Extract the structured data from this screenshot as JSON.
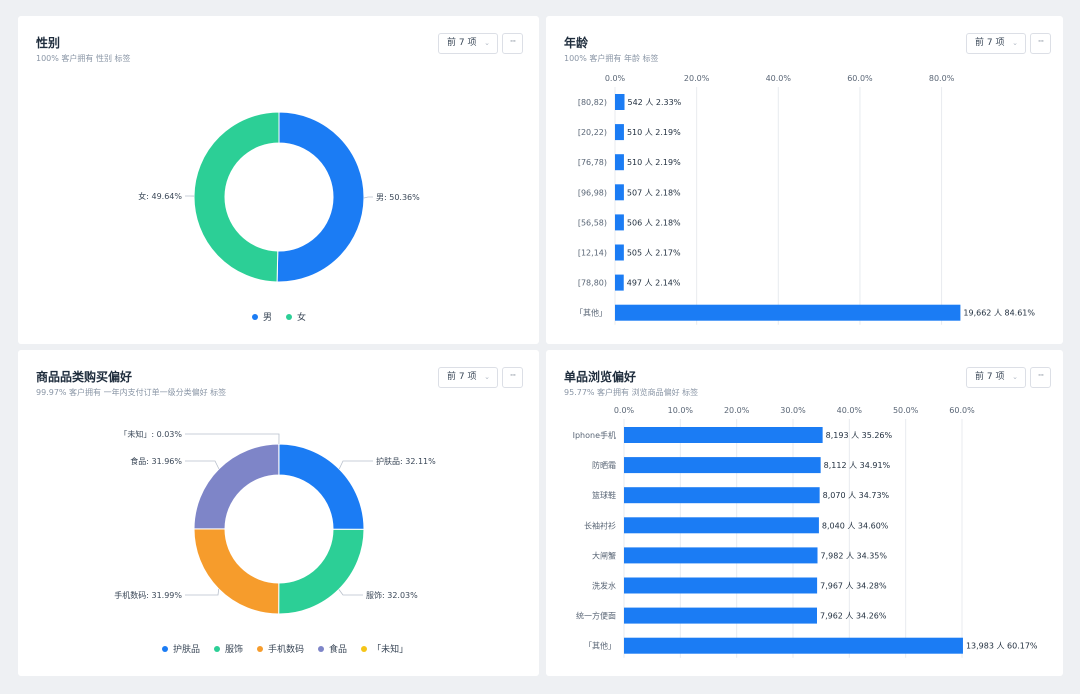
{
  "ui": {
    "topn_label": "前 7 项",
    "more_label": "···"
  },
  "panels": {
    "gender": {
      "title": "性别",
      "subtitle": "100% 客户拥有 性别 标签"
    },
    "age": {
      "title": "年龄",
      "subtitle": "100% 客户拥有 年龄 标签"
    },
    "category": {
      "title": "商品品类购买偏好",
      "subtitle": "99.97% 客户拥有 一年内支付订单一级分类偏好 标签"
    },
    "item": {
      "title": "单品浏览偏好",
      "subtitle": "95.77% 客户拥有 浏览商品偏好 标签"
    }
  },
  "chart_data": [
    {
      "id": "gender",
      "type": "pie",
      "title": "性别",
      "slices": [
        {
          "name": "男",
          "value": 50.36,
          "label": "男: 50.36%",
          "color": "#1b7cf4"
        },
        {
          "name": "女",
          "value": 49.64,
          "label": "女: 49.64%",
          "color": "#2ccf96"
        }
      ],
      "legend": [
        "男",
        "女"
      ]
    },
    {
      "id": "age",
      "type": "bar",
      "orientation": "horizontal",
      "title": "年龄",
      "categories": [
        "[80,82)",
        "[20,22)",
        "[76,78)",
        "[96,98)",
        "[56,58)",
        "[12,14)",
        "[78,80)",
        "「其他」"
      ],
      "values": [
        2.33,
        2.19,
        2.19,
        2.18,
        2.18,
        2.17,
        2.14,
        84.61
      ],
      "data_labels": [
        "542 人 2.33%",
        "510 人 2.19%",
        "510 人 2.19%",
        "507 人 2.18%",
        "506 人 2.18%",
        "505 人 2.17%",
        "497 人 2.14%",
        "19,662 人 84.61%"
      ],
      "ticks": [
        "0.0%",
        "20.0%",
        "40.0%",
        "60.0%",
        "80.0%"
      ],
      "xlim": [
        0,
        85
      ],
      "color": "#1b7cf4"
    },
    {
      "id": "category",
      "type": "pie",
      "title": "商品品类购买偏好",
      "slices": [
        {
          "name": "护肤品",
          "value": 32.11,
          "label": "护肤品: 32.11%",
          "color": "#1b7cf4"
        },
        {
          "name": "服饰",
          "value": 32.03,
          "label": "服饰: 32.03%",
          "color": "#2ccf96"
        },
        {
          "name": "手机数码",
          "value": 31.99,
          "label": "手机数码: 31.99%",
          "color": "#f69c2c"
        },
        {
          "name": "食品",
          "value": 31.96,
          "label": "食品: 31.96%",
          "color": "#7e85c8"
        },
        {
          "name": "「未知」",
          "value": 0.03,
          "label": "「未知」: 0.03%",
          "color": "#f5c518"
        }
      ],
      "legend": [
        "护肤品",
        "服饰",
        "手机数码",
        "食品",
        "「未知」"
      ]
    },
    {
      "id": "item",
      "type": "bar",
      "orientation": "horizontal",
      "title": "单品浏览偏好",
      "categories": [
        "Iphone手机",
        "防晒霜",
        "篮球鞋",
        "长袖衬衫",
        "大闸蟹",
        "洗发水",
        "统一方便面",
        "「其他」"
      ],
      "values": [
        35.26,
        34.91,
        34.73,
        34.6,
        34.35,
        34.28,
        34.26,
        60.17
      ],
      "data_labels": [
        "8,193 人 35.26%",
        "8,112 人 34.91%",
        "8,070 人 34.73%",
        "8,040 人 34.60%",
        "7,982 人 34.35%",
        "7,967 人 34.28%",
        "7,962 人 34.26%",
        "13,983 人 60.17%"
      ],
      "ticks": [
        "0.0%",
        "10.0%",
        "20.0%",
        "30.0%",
        "40.0%",
        "50.0%",
        "60.0%"
      ],
      "xlim": [
        0,
        60
      ],
      "color": "#1b7cf4"
    }
  ]
}
